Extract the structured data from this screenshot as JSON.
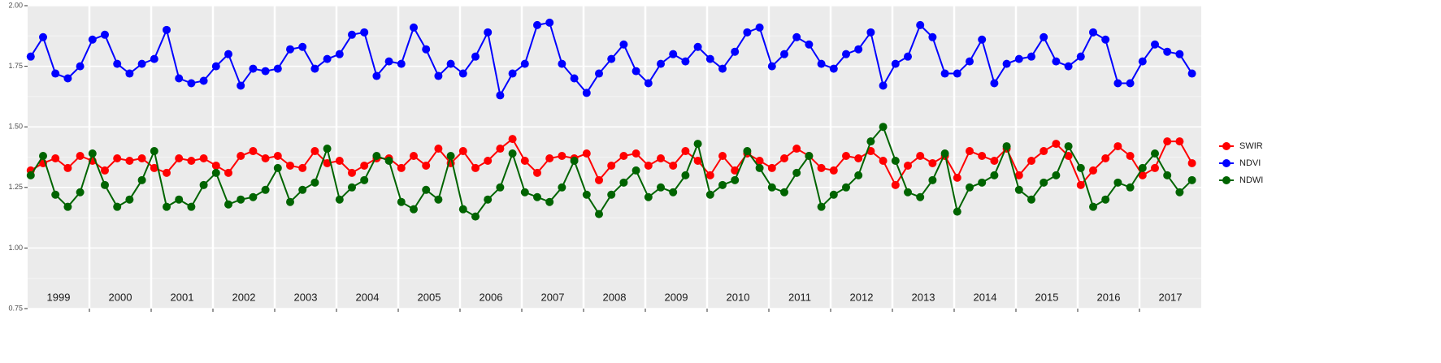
{
  "chart_data": {
    "type": "line",
    "x": [
      1999.05,
      1999.25,
      1999.45,
      1999.65,
      1999.85,
      2000.05,
      2000.25,
      2000.45,
      2000.65,
      2000.85,
      2001.05,
      2001.25,
      2001.45,
      2001.65,
      2001.85,
      2002.05,
      2002.25,
      2002.45,
      2002.65,
      2002.85,
      2003.05,
      2003.25,
      2003.45,
      2003.65,
      2003.85,
      2004.05,
      2004.25,
      2004.45,
      2004.65,
      2004.85,
      2005.05,
      2005.25,
      2005.45,
      2005.65,
      2005.85,
      2006.05,
      2006.25,
      2006.45,
      2006.65,
      2006.85,
      2007.05,
      2007.25,
      2007.45,
      2007.65,
      2007.85,
      2008.05,
      2008.25,
      2008.45,
      2008.65,
      2008.85,
      2009.05,
      2009.25,
      2009.45,
      2009.65,
      2009.85,
      2010.05,
      2010.25,
      2010.45,
      2010.65,
      2010.85,
      2011.05,
      2011.25,
      2011.45,
      2011.65,
      2011.85,
      2012.05,
      2012.25,
      2012.45,
      2012.65,
      2012.85,
      2013.05,
      2013.25,
      2013.45,
      2013.65,
      2013.85,
      2014.05,
      2014.25,
      2014.45,
      2014.65,
      2014.85,
      2015.05,
      2015.25,
      2015.45,
      2015.65,
      2015.85,
      2016.05,
      2016.25,
      2016.45,
      2016.65,
      2016.85,
      2017.05,
      2017.25,
      2017.45,
      2017.65,
      2017.85
    ],
    "series": [
      {
        "name": "SWIR",
        "color": "#ff0000",
        "values": [
          1.32,
          1.35,
          1.37,
          1.33,
          1.38,
          1.36,
          1.32,
          1.37,
          1.36,
          1.37,
          1.33,
          1.31,
          1.37,
          1.36,
          1.37,
          1.34,
          1.31,
          1.38,
          1.4,
          1.37,
          1.38,
          1.34,
          1.33,
          1.4,
          1.35,
          1.36,
          1.31,
          1.34,
          1.37,
          1.37,
          1.33,
          1.38,
          1.34,
          1.41,
          1.35,
          1.4,
          1.33,
          1.36,
          1.41,
          1.45,
          1.36,
          1.31,
          1.37,
          1.38,
          1.37,
          1.39,
          1.28,
          1.34,
          1.38,
          1.39,
          1.34,
          1.37,
          1.34,
          1.4,
          1.36,
          1.3,
          1.38,
          1.32,
          1.39,
          1.36,
          1.33,
          1.37,
          1.41,
          1.38,
          1.33,
          1.32,
          1.38,
          1.37,
          1.4,
          1.36,
          1.26,
          1.34,
          1.38,
          1.35,
          1.38,
          1.29,
          1.4,
          1.38,
          1.36,
          1.41,
          1.3,
          1.36,
          1.4,
          1.43,
          1.38,
          1.26,
          1.32,
          1.37,
          1.42,
          1.38,
          1.3,
          1.33,
          1.44,
          1.44,
          1.35
        ]
      },
      {
        "name": "NDVI",
        "color": "#0000ff",
        "values": [
          1.79,
          1.87,
          1.72,
          1.7,
          1.75,
          1.86,
          1.88,
          1.76,
          1.72,
          1.76,
          1.78,
          1.9,
          1.7,
          1.68,
          1.69,
          1.75,
          1.8,
          1.67,
          1.74,
          1.73,
          1.74,
          1.82,
          1.83,
          1.74,
          1.78,
          1.8,
          1.88,
          1.89,
          1.71,
          1.77,
          1.76,
          1.91,
          1.82,
          1.71,
          1.76,
          1.72,
          1.79,
          1.89,
          1.63,
          1.72,
          1.76,
          1.92,
          1.93,
          1.76,
          1.7,
          1.64,
          1.72,
          1.78,
          1.84,
          1.73,
          1.68,
          1.76,
          1.8,
          1.77,
          1.83,
          1.78,
          1.74,
          1.81,
          1.89,
          1.91,
          1.75,
          1.8,
          1.87,
          1.84,
          1.76,
          1.74,
          1.8,
          1.82,
          1.89,
          1.67,
          1.76,
          1.79,
          1.92,
          1.87,
          1.72,
          1.72,
          1.77,
          1.86,
          1.68,
          1.76,
          1.78,
          1.79,
          1.87,
          1.77,
          1.75,
          1.79,
          1.89,
          1.86,
          1.68,
          1.68,
          1.77,
          1.84,
          1.81,
          1.8,
          1.72
        ]
      },
      {
        "name": "NDWI",
        "color": "#006400",
        "values": [
          1.3,
          1.38,
          1.22,
          1.17,
          1.23,
          1.39,
          1.26,
          1.17,
          1.2,
          1.28,
          1.4,
          1.17,
          1.2,
          1.17,
          1.26,
          1.31,
          1.18,
          1.2,
          1.21,
          1.24,
          1.33,
          1.19,
          1.24,
          1.27,
          1.41,
          1.2,
          1.25,
          1.28,
          1.38,
          1.36,
          1.19,
          1.16,
          1.24,
          1.2,
          1.38,
          1.16,
          1.13,
          1.2,
          1.25,
          1.39,
          1.23,
          1.21,
          1.19,
          1.25,
          1.36,
          1.22,
          1.14,
          1.22,
          1.27,
          1.32,
          1.21,
          1.25,
          1.23,
          1.3,
          1.43,
          1.22,
          1.26,
          1.28,
          1.4,
          1.33,
          1.25,
          1.23,
          1.31,
          1.38,
          1.17,
          1.22,
          1.25,
          1.3,
          1.44,
          1.5,
          1.36,
          1.23,
          1.21,
          1.28,
          1.39,
          1.15,
          1.25,
          1.27,
          1.3,
          1.42,
          1.24,
          1.2,
          1.27,
          1.3,
          1.42,
          1.33,
          1.17,
          1.2,
          1.27,
          1.25,
          1.33,
          1.39,
          1.3,
          1.23,
          1.28
        ]
      }
    ],
    "xlim": [
      1999,
      2018
    ],
    "xticks": [
      {
        "value": 1999.5,
        "label": "1999"
      },
      {
        "value": 2000.5,
        "label": "2000"
      },
      {
        "value": 2001.5,
        "label": "2001"
      },
      {
        "value": 2002.5,
        "label": "2002"
      },
      {
        "value": 2003.5,
        "label": "2003"
      },
      {
        "value": 2004.5,
        "label": "2004"
      },
      {
        "value": 2005.5,
        "label": "2005"
      },
      {
        "value": 2006.5,
        "label": "2006"
      },
      {
        "value": 2007.5,
        "label": "2007"
      },
      {
        "value": 2008.5,
        "label": "2008"
      },
      {
        "value": 2009.5,
        "label": "2009"
      },
      {
        "value": 2010.5,
        "label": "2010"
      },
      {
        "value": 2011.5,
        "label": "2011"
      },
      {
        "value": 2012.5,
        "label": "2012"
      },
      {
        "value": 2013.5,
        "label": "2013"
      },
      {
        "value": 2014.5,
        "label": "2014"
      },
      {
        "value": 2015.5,
        "label": "2015"
      },
      {
        "value": 2016.5,
        "label": "2016"
      },
      {
        "value": 2017.5,
        "label": "2017"
      }
    ],
    "ylim": [
      0.75,
      2.0
    ],
    "yticks": [
      {
        "value": 0.75,
        "label": "0.75"
      },
      {
        "value": 1.0,
        "label": "1.00"
      },
      {
        "value": 1.25,
        "label": "1.25"
      },
      {
        "value": 1.5,
        "label": "1.50"
      },
      {
        "value": 1.75,
        "label": "1.75"
      },
      {
        "value": 2.0,
        "label": "2.00"
      }
    ],
    "grid": true,
    "legend": "right"
  }
}
